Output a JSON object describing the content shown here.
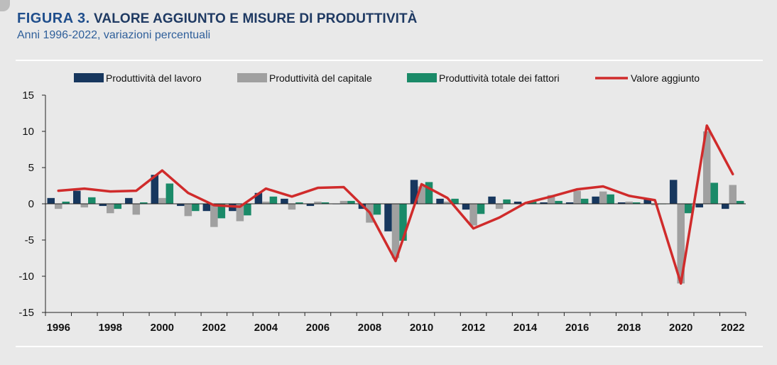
{
  "header": {
    "figure_label": "FIGURA 3.",
    "title": "VALORE AGGIUNTO E MISURE DI PRODUTTIVITÀ",
    "subtitle": "Anni 1996-2022, variazioni percentuali"
  },
  "colors": {
    "labour": "#17375e",
    "capital": "#a0a0a0",
    "tfp": "#1a8a68",
    "value_added": "#d02b2b"
  },
  "chart_data": {
    "type": "bar",
    "title": "",
    "xlabel": "",
    "ylabel": "",
    "ylim": [
      -15,
      15
    ],
    "yticks": [
      15,
      10,
      5,
      0,
      -5,
      -10,
      -15
    ],
    "grid": false,
    "legend_position": "top",
    "x": [
      1996,
      1997,
      1998,
      1999,
      2000,
      2001,
      2002,
      2003,
      2004,
      2005,
      2006,
      2007,
      2008,
      2009,
      2010,
      2011,
      2012,
      2013,
      2014,
      2015,
      2016,
      2017,
      2018,
      2019,
      2020,
      2021,
      2022
    ],
    "xtick_labels": [
      "1996",
      "1998",
      "2000",
      "2002",
      "2004",
      "2006",
      "2008",
      "2010",
      "2012",
      "2014",
      "2016",
      "2018",
      "2020",
      "2022"
    ],
    "series": [
      {
        "name": "Produttività del lavoro",
        "kind": "bar",
        "values": [
          0.8,
          1.8,
          -0.3,
          0.8,
          4.0,
          -0.3,
          -1.0,
          -1.0,
          1.5,
          0.7,
          -0.3,
          0.0,
          -0.7,
          -3.8,
          3.3,
          0.7,
          -0.8,
          1.0,
          0.3,
          0.2,
          0.2,
          1.0,
          0.2,
          0.7,
          3.3,
          -0.5,
          -0.7
        ]
      },
      {
        "name": "Produttività del capitale",
        "kind": "bar",
        "values": [
          -0.7,
          -0.5,
          -1.3,
          -1.5,
          0.8,
          -1.7,
          -3.2,
          -2.4,
          0.3,
          -0.8,
          0.3,
          0.4,
          -2.6,
          -7.5,
          2.4,
          0.3,
          -3.0,
          -0.7,
          0.1,
          1.2,
          1.8,
          1.7,
          0.3,
          -0.2,
          -11.0,
          10.0,
          2.6
        ]
      },
      {
        "name": "Produttività totale dei fattori",
        "kind": "bar",
        "values": [
          0.3,
          0.9,
          -0.7,
          0.2,
          2.8,
          -1.0,
          -2.0,
          -1.6,
          1.0,
          0.2,
          0.2,
          0.4,
          -1.5,
          -5.1,
          3.0,
          0.7,
          -1.4,
          0.6,
          0.3,
          0.4,
          0.7,
          1.3,
          0.2,
          0.0,
          -1.3,
          2.9,
          0.4
        ]
      },
      {
        "name": "Valore aggiunto",
        "kind": "line",
        "values": [
          1.8,
          2.1,
          1.7,
          1.8,
          4.6,
          1.5,
          -0.2,
          -0.4,
          2.1,
          1.0,
          2.2,
          2.3,
          -1.2,
          -7.9,
          2.7,
          0.8,
          -3.4,
          -1.9,
          0.1,
          1.0,
          2.0,
          2.4,
          1.1,
          0.5,
          -11.0,
          10.8,
          4.1
        ]
      }
    ]
  }
}
